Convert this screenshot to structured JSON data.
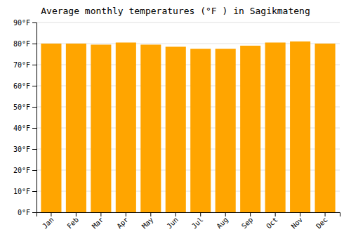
{
  "chart_data": {
    "type": "bar",
    "title": "Average monthly temperatures (°F ) in Sagikmateng",
    "categories": [
      "Jan",
      "Feb",
      "Mar",
      "Apr",
      "May",
      "Jun",
      "Jul",
      "Aug",
      "Sep",
      "Oct",
      "Nov",
      "Dec"
    ],
    "values": [
      80,
      80,
      79.5,
      80.5,
      79.5,
      78.5,
      77.5,
      77.5,
      79,
      80.5,
      81,
      80
    ],
    "color": "#FFA500",
    "ylim": [
      0,
      90
    ],
    "yticks": [
      {
        "value": 0,
        "label": "0°F"
      },
      {
        "value": 10,
        "label": "10°F"
      },
      {
        "value": 20,
        "label": "20°F"
      },
      {
        "value": 30,
        "label": "30°F"
      },
      {
        "value": 40,
        "label": "40°F"
      },
      {
        "value": 50,
        "label": "50°F"
      },
      {
        "value": 60,
        "label": "60°F"
      },
      {
        "value": 70,
        "label": "70°F"
      },
      {
        "value": 80,
        "label": "80°F"
      },
      {
        "value": 90,
        "label": "90°F"
      }
    ],
    "grid": true
  }
}
